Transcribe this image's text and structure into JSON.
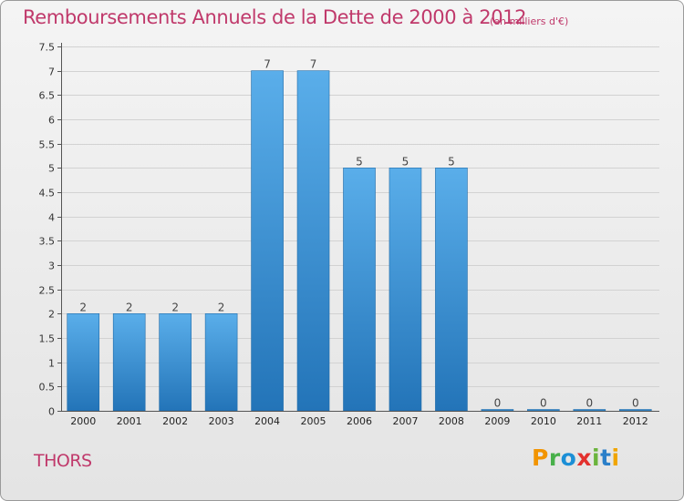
{
  "chart_data": {
    "type": "bar",
    "title": "Remboursements Annuels de la Dette de 2000 à 2012",
    "subtitle": "(en milliers d'€)",
    "categories": [
      "2000",
      "2001",
      "2002",
      "2003",
      "2004",
      "2005",
      "2006",
      "2007",
      "2008",
      "2009",
      "2010",
      "2011",
      "2012"
    ],
    "values": [
      2,
      2,
      2,
      2,
      7,
      7,
      5,
      5,
      5,
      0,
      0,
      0,
      0
    ],
    "data_labels": [
      "2",
      "2",
      "2",
      "2",
      "7",
      "7",
      "5",
      "5",
      "5",
      "0",
      "0",
      "0",
      "0"
    ],
    "yticks": [
      "0",
      "0.5",
      "1",
      "1.5",
      "2",
      "2.5",
      "3",
      "3.5",
      "4",
      "4.5",
      "5",
      "5.5",
      "6",
      "6.5",
      "7",
      "7.5"
    ],
    "ylim": [
      0,
      7.5
    ],
    "xlabel": "",
    "ylabel": "",
    "grid": true,
    "bar_color": "#3d8fd3"
  },
  "commune": "THORS",
  "logo": {
    "letters": [
      "P",
      "r",
      "o",
      "x",
      "i",
      "t",
      "i"
    ],
    "colors": [
      "#f29400",
      "#48b04a",
      "#1c8fd6",
      "#e3312e",
      "#6bb43d",
      "#2a7fc9",
      "#f0a500"
    ]
  }
}
